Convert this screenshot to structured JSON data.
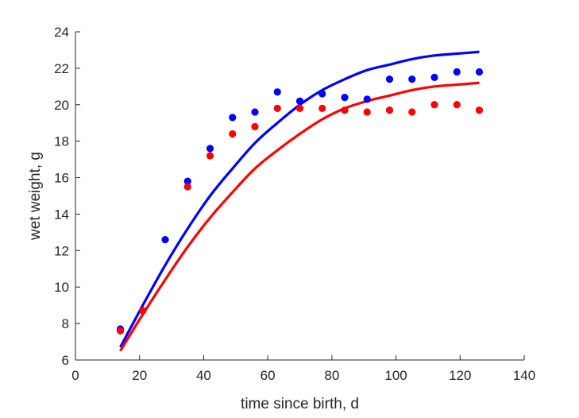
{
  "chart_data": {
    "type": "scatter",
    "title": "",
    "xlabel": "time since birth, d",
    "ylabel": "wet weight, g",
    "xlim": [
      0,
      140
    ],
    "ylim": [
      6,
      24
    ],
    "xticks": [
      0,
      20,
      40,
      60,
      80,
      100,
      120,
      140
    ],
    "yticks": [
      6,
      8,
      10,
      12,
      14,
      16,
      18,
      20,
      22,
      24
    ],
    "grid": false,
    "legend": "none",
    "series": [
      {
        "kind": "points",
        "color": "#0000ff",
        "x": [
          14,
          21,
          28,
          35,
          42,
          49,
          56,
          63,
          70,
          77,
          84,
          91,
          98,
          105,
          112,
          119,
          126
        ],
        "y": [
          7.7,
          8.7,
          12.6,
          15.8,
          17.6,
          19.3,
          19.6,
          20.7,
          20.2,
          20.6,
          20.4,
          20.3,
          21.4,
          21.4,
          21.5,
          21.8,
          21.8
        ]
      },
      {
        "kind": "points",
        "color": "#ff0000",
        "x": [
          14,
          21,
          35,
          42,
          49,
          56,
          63,
          70,
          77,
          84,
          91,
          98,
          105,
          112,
          119,
          126
        ],
        "y": [
          7.6,
          8.7,
          15.5,
          17.2,
          18.4,
          18.8,
          19.8,
          19.8,
          19.8,
          19.7,
          19.6,
          19.7,
          19.6,
          20.0,
          20.0,
          19.7
        ]
      },
      {
        "kind": "line",
        "color": "#0000ff",
        "x": [
          14,
          21,
          28,
          35,
          42,
          49,
          56,
          63,
          70,
          77,
          84,
          91,
          98,
          105,
          112,
          119,
          126
        ],
        "y": [
          6.7,
          9.0,
          11.2,
          13.2,
          15.0,
          16.5,
          17.9,
          19.0,
          20.0,
          20.8,
          21.4,
          21.9,
          22.2,
          22.5,
          22.7,
          22.8,
          22.9
        ]
      },
      {
        "kind": "line",
        "color": "#ff0000",
        "x": [
          14,
          21,
          28,
          35,
          42,
          49,
          56,
          63,
          70,
          77,
          84,
          91,
          98,
          105,
          112,
          119,
          126
        ],
        "y": [
          6.5,
          8.5,
          10.4,
          12.2,
          13.8,
          15.2,
          16.5,
          17.5,
          18.4,
          19.2,
          19.8,
          20.2,
          20.5,
          20.8,
          21.0,
          21.1,
          21.2
        ]
      }
    ]
  }
}
